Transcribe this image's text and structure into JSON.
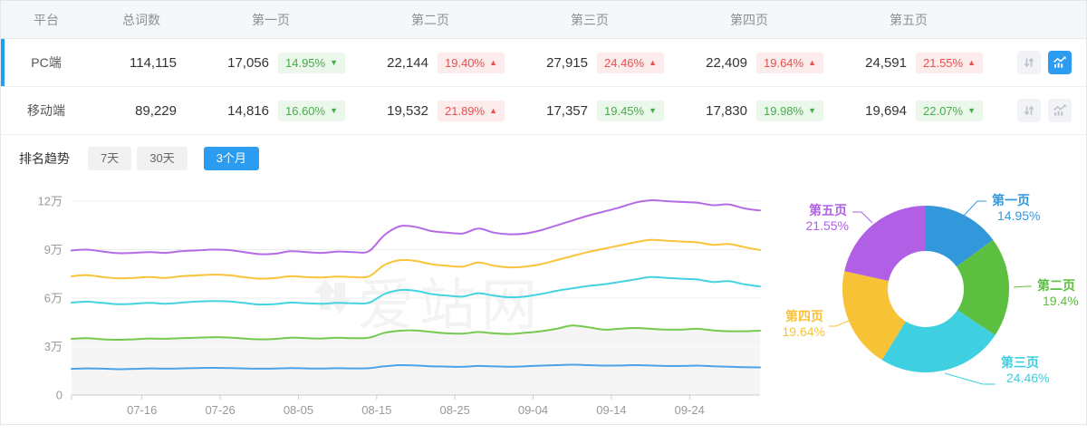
{
  "table": {
    "headers": {
      "platform": "平台",
      "total": "总词数",
      "pages": [
        "第一页",
        "第二页",
        "第三页",
        "第四页",
        "第五页"
      ]
    },
    "rows": [
      {
        "platform": "PC端",
        "total": "114,115",
        "row_class": "selected",
        "pages": [
          {
            "value": "17,056",
            "pct": "14.95%",
            "arrow": "▼",
            "tone": "green"
          },
          {
            "value": "22,144",
            "pct": "19.40%",
            "arrow": "▲",
            "tone": "red"
          },
          {
            "value": "27,915",
            "pct": "24.46%",
            "arrow": "▲",
            "tone": "red"
          },
          {
            "value": "22,409",
            "pct": "19.64%",
            "arrow": "▲",
            "tone": "red"
          },
          {
            "value": "24,591",
            "pct": "21.55%",
            "arrow": "▲",
            "tone": "red"
          }
        ],
        "icons": {
          "trend_class": "active"
        }
      },
      {
        "platform": "移动端",
        "total": "89,229",
        "row_class": "",
        "pages": [
          {
            "value": "14,816",
            "pct": "16.60%",
            "arrow": "▼",
            "tone": "green"
          },
          {
            "value": "19,532",
            "pct": "21.89%",
            "arrow": "▲",
            "tone": "red"
          },
          {
            "value": "17,357",
            "pct": "19.45%",
            "arrow": "▼",
            "tone": "green"
          },
          {
            "value": "17,830",
            "pct": "19.98%",
            "arrow": "▼",
            "tone": "green"
          },
          {
            "value": "19,694",
            "pct": "22.07%",
            "arrow": "▼",
            "tone": "green"
          }
        ],
        "icons": {
          "trend_class": ""
        }
      }
    ]
  },
  "trend": {
    "title": "排名趋势",
    "tabs": [
      {
        "label": "7天",
        "class": ""
      },
      {
        "label": "30天",
        "class": ""
      },
      {
        "label": "3个月",
        "class": "active"
      }
    ]
  },
  "watermark": "爱站网",
  "icons": {
    "sort": "sort-updown-arrows",
    "trend": "line-chart"
  },
  "colors": {
    "accent": "#2b9cf0",
    "selected_bar": "#1e9ff2",
    "badge_green": "#47ad4c",
    "badge_red": "#e85050"
  },
  "chart_data": [
    {
      "type": "line",
      "title": "排名趋势 (3个月, stacked cumulative keyword counts, unit 万)",
      "x_start": "07-07",
      "x_end": "10-03",
      "point_interval_days": 2,
      "x_tick_labels": [
        "07-16",
        "07-26",
        "08-05",
        "08-15",
        "08-25",
        "09-04",
        "09-14",
        "09-24"
      ],
      "ylabel": "",
      "ylim": [
        0,
        12
      ],
      "y_tick_labels": [
        "0",
        "3万",
        "6万",
        "9万",
        "12万"
      ],
      "grid": true,
      "legend_position": "none",
      "area_fill_under_series": "第二页(累计)",
      "series": [
        {
          "name": "第五页(累计=总词数)",
          "color": "#b56ae6",
          "values": [
            8.95,
            9.0,
            8.88,
            8.78,
            8.8,
            8.85,
            8.8,
            8.9,
            8.95,
            9.0,
            8.98,
            8.85,
            8.72,
            8.75,
            8.9,
            8.85,
            8.8,
            8.88,
            8.85,
            8.9,
            9.9,
            10.45,
            10.4,
            10.15,
            10.05,
            10.0,
            10.3,
            10.05,
            9.95,
            10.0,
            10.2,
            10.5,
            10.8,
            11.1,
            11.35,
            11.6,
            11.9,
            12.05,
            12.0,
            11.95,
            11.9,
            11.75,
            11.8,
            11.55,
            11.42
          ]
        },
        {
          "name": "第四页(累计)",
          "color": "#f9c43a",
          "values": [
            7.35,
            7.42,
            7.3,
            7.22,
            7.25,
            7.3,
            7.25,
            7.35,
            7.4,
            7.45,
            7.42,
            7.3,
            7.2,
            7.24,
            7.35,
            7.3,
            7.28,
            7.33,
            7.3,
            7.34,
            8.05,
            8.35,
            8.3,
            8.1,
            8.0,
            7.95,
            8.2,
            8.0,
            7.9,
            7.95,
            8.1,
            8.35,
            8.6,
            8.85,
            9.05,
            9.25,
            9.45,
            9.6,
            9.55,
            9.5,
            9.45,
            9.3,
            9.35,
            9.15,
            8.98
          ]
        },
        {
          "name": "第三页(累计)",
          "color": "#44d3e1",
          "values": [
            5.72,
            5.78,
            5.7,
            5.62,
            5.65,
            5.7,
            5.65,
            5.72,
            5.78,
            5.82,
            5.8,
            5.7,
            5.6,
            5.63,
            5.72,
            5.68,
            5.65,
            5.7,
            5.68,
            5.71,
            6.25,
            6.5,
            6.45,
            6.25,
            6.15,
            6.1,
            6.3,
            6.15,
            6.05,
            6.1,
            6.25,
            6.45,
            6.6,
            6.75,
            6.85,
            7.0,
            7.15,
            7.3,
            7.25,
            7.2,
            7.15,
            7.0,
            7.05,
            6.85,
            6.72
          ]
        },
        {
          "name": "第二页(累计)",
          "color": "#74ca4e",
          "values": [
            3.48,
            3.52,
            3.45,
            3.42,
            3.45,
            3.5,
            3.48,
            3.52,
            3.55,
            3.58,
            3.56,
            3.5,
            3.45,
            3.47,
            3.55,
            3.52,
            3.5,
            3.55,
            3.52,
            3.55,
            3.85,
            3.98,
            4.0,
            3.9,
            3.82,
            3.8,
            3.9,
            3.82,
            3.78,
            3.85,
            3.95,
            4.1,
            4.3,
            4.2,
            4.05,
            4.1,
            4.15,
            4.1,
            4.05,
            4.05,
            4.1,
            4.0,
            3.95,
            3.95,
            3.98
          ]
        },
        {
          "name": "第一页",
          "color": "#4aa3ea",
          "values": [
            1.62,
            1.65,
            1.63,
            1.6,
            1.62,
            1.65,
            1.63,
            1.65,
            1.67,
            1.68,
            1.67,
            1.65,
            1.63,
            1.64,
            1.67,
            1.65,
            1.64,
            1.66,
            1.65,
            1.66,
            1.78,
            1.85,
            1.83,
            1.78,
            1.76,
            1.75,
            1.8,
            1.77,
            1.75,
            1.78,
            1.82,
            1.85,
            1.88,
            1.85,
            1.82,
            1.83,
            1.85,
            1.83,
            1.8,
            1.8,
            1.82,
            1.78,
            1.75,
            1.72,
            1.71
          ]
        }
      ]
    },
    {
      "type": "pie",
      "title": "PC端 各页占比",
      "labels": [
        "第一页",
        "第二页",
        "第三页",
        "第四页",
        "第五页"
      ],
      "values": [
        14.95,
        19.4,
        24.46,
        19.64,
        21.55
      ],
      "display": [
        "14.95%",
        "19.4%",
        "24.46%",
        "19.64%",
        "21.55%"
      ],
      "colors": [
        "#3398db",
        "#5cbf3f",
        "#3ecfe0",
        "#f7c235",
        "#b160e6"
      ],
      "donut": true,
      "start_angle_deg": 0,
      "clockwise": true
    }
  ]
}
